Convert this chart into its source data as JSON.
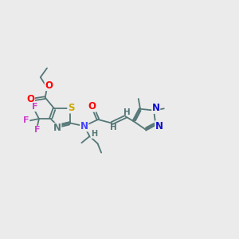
{
  "bg_color": "#ebebeb",
  "fig_size": [
    3.0,
    3.0
  ],
  "dpi": 100,
  "bond_color": "#557777",
  "bond_lw": 1.3,
  "xlim": [
    0,
    6.5
  ],
  "ylim": [
    0.2,
    3.2
  ]
}
